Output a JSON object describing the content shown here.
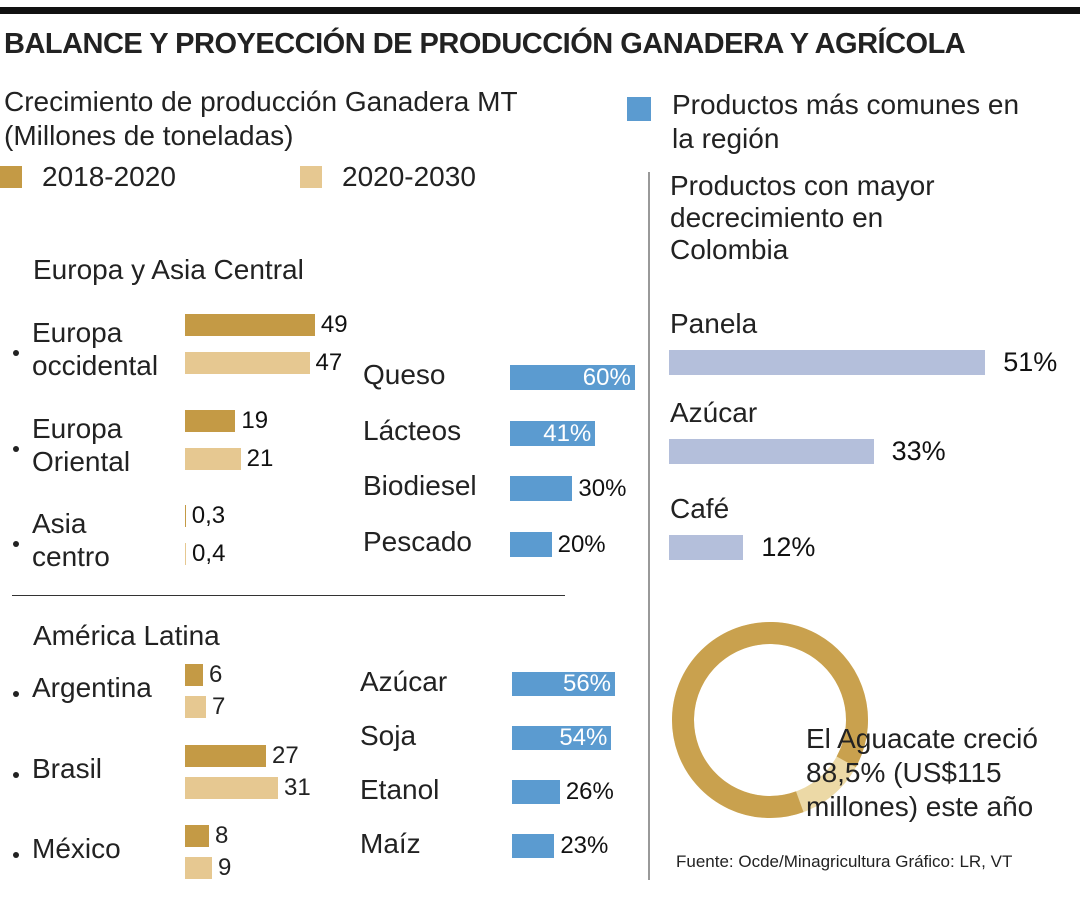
{
  "title": "BALANCE Y PROYECCIÓN DE PRODUCCIÓN GANADERA Y AGRÍCOLA",
  "source": "Fuente: Ocde/Minagricultura  Gráfico: LR, VT",
  "chart_data": [
    {
      "type": "bar",
      "title": "Crecimiento de producción Ganadera MT (Millones de toneladas)",
      "subtitle": "Europa y Asia Central",
      "categories": [
        "Europa occidental",
        "Europa Oriental",
        "Asia centro"
      ],
      "series": [
        {
          "name": "2018-2020",
          "color": "#c49a45",
          "values": [
            49,
            19,
            0.3
          ],
          "value_labels": [
            "49",
            "19",
            "0,3"
          ]
        },
        {
          "name": "2020-2030",
          "color": "#e6c891",
          "values": [
            47,
            21,
            0.4
          ],
          "value_labels": [
            "47",
            "21",
            "0,4"
          ]
        }
      ]
    },
    {
      "type": "bar",
      "subtitle": "América Latina",
      "categories": [
        "Argentina",
        "Brasil",
        "México"
      ],
      "series": [
        {
          "color": "#c49a45",
          "values": [
            6,
            27,
            8
          ]
        },
        {
          "color": "#e6c891",
          "values": [
            7,
            31,
            9
          ]
        }
      ]
    },
    {
      "type": "bar",
      "categories": [
        "Queso",
        "Lácteos",
        "Biodiesel",
        "Pescado"
      ],
      "series": [
        {
          "name": "Productos más comunes en la región",
          "color": "#5b9bd0",
          "values": [
            60,
            41,
            30,
            20
          ],
          "value_labels": [
            "60%",
            "41%",
            "30%",
            "20%"
          ]
        }
      ]
    },
    {
      "type": "bar",
      "categories": [
        "Azúcar",
        "Soja",
        "Etanol",
        "Maíz"
      ],
      "series": [
        {
          "color": "#5b9bd0",
          "values": [
            56,
            54,
            26,
            23
          ],
          "value_labels": [
            "56%",
            "54%",
            "26%",
            "23%"
          ]
        }
      ]
    },
    {
      "type": "bar",
      "title": "Productos con mayor decrecimiento en Colombia",
      "categories": [
        "Panela",
        "Azúcar",
        "Café"
      ],
      "series": [
        {
          "color": "#b4bfdb",
          "values": [
            51,
            33,
            12
          ],
          "value_labels": [
            "51%",
            "33%",
            "12%"
          ]
        }
      ]
    },
    {
      "type": "pie",
      "values": [
        88.5
      ],
      "color": "#c9a14e",
      "annotation": "El Aguacate creció 88,5% (US$115 millones) este año"
    }
  ]
}
